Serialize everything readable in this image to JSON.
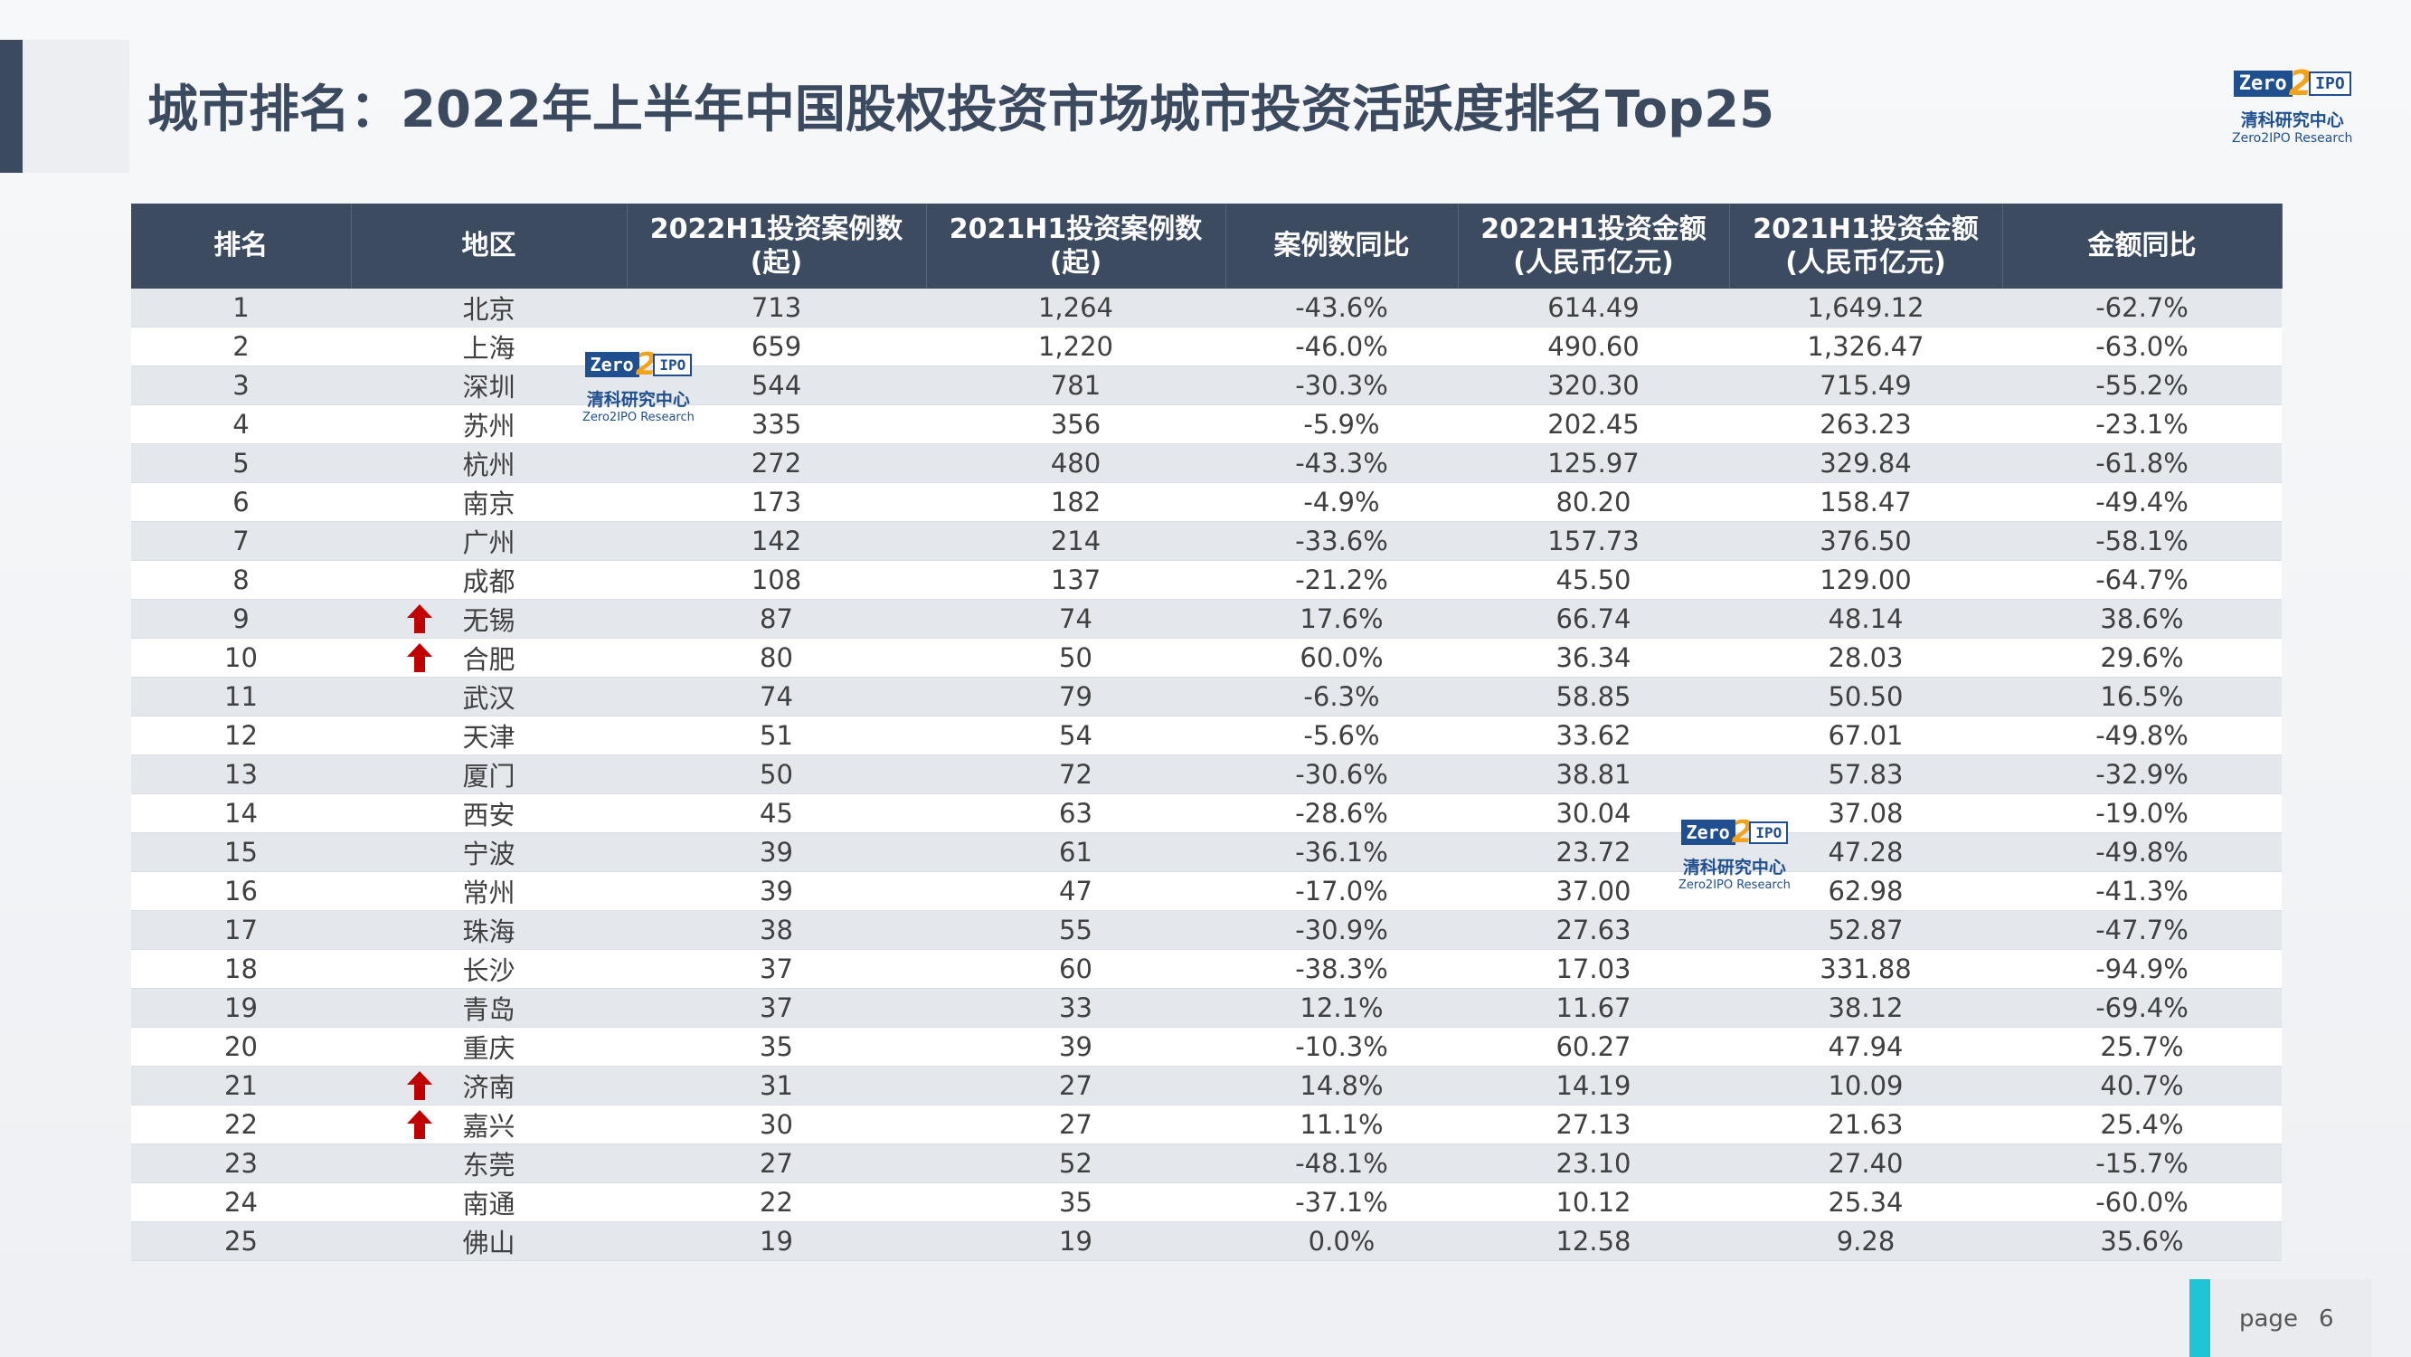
{
  "title": "城市排名：2022年上半年中国股权投资市场城市投资活跃度排名Top25",
  "logo": {
    "zero": "Zero",
    "two": "2",
    "ipo": "IPO",
    "cn": "清科研究中心",
    "en": "Zero2IPO Research"
  },
  "table": {
    "headers": [
      {
        "line1": "排名",
        "line2": ""
      },
      {
        "line1": "地区",
        "line2": ""
      },
      {
        "line1": "2022H1投资案例数",
        "line2": "(起)"
      },
      {
        "line1": "2021H1投资案例数",
        "line2": "(起)"
      },
      {
        "line1": "案例数同比",
        "line2": ""
      },
      {
        "line1": "2022H1投资金额",
        "line2": "(人民币亿元)"
      },
      {
        "line1": "2021H1投资金额",
        "line2": "(人民币亿元)"
      },
      {
        "line1": "金额同比",
        "line2": ""
      }
    ],
    "rows": [
      [
        "1",
        "北京",
        "713",
        "1,264",
        "-43.6%",
        "614.49",
        "1,649.12",
        "-62.7%"
      ],
      [
        "2",
        "上海",
        "659",
        "1,220",
        "-46.0%",
        "490.60",
        "1,326.47",
        "-63.0%"
      ],
      [
        "3",
        "深圳",
        "544",
        "781",
        "-30.3%",
        "320.30",
        "715.49",
        "-55.2%"
      ],
      [
        "4",
        "苏州",
        "335",
        "356",
        "-5.9%",
        "202.45",
        "263.23",
        "-23.1%"
      ],
      [
        "5",
        "杭州",
        "272",
        "480",
        "-43.3%",
        "125.97",
        "329.84",
        "-61.8%"
      ],
      [
        "6",
        "南京",
        "173",
        "182",
        "-4.9%",
        "80.20",
        "158.47",
        "-49.4%"
      ],
      [
        "7",
        "广州",
        "142",
        "214",
        "-33.6%",
        "157.73",
        "376.50",
        "-58.1%"
      ],
      [
        "8",
        "成都",
        "108",
        "137",
        "-21.2%",
        "45.50",
        "129.00",
        "-64.7%"
      ],
      [
        "9",
        "无锡",
        "87",
        "74",
        "17.6%",
        "66.74",
        "48.14",
        "38.6%"
      ],
      [
        "10",
        "合肥",
        "80",
        "50",
        "60.0%",
        "36.34",
        "28.03",
        "29.6%"
      ],
      [
        "11",
        "武汉",
        "74",
        "79",
        "-6.3%",
        "58.85",
        "50.50",
        "16.5%"
      ],
      [
        "12",
        "天津",
        "51",
        "54",
        "-5.6%",
        "33.62",
        "67.01",
        "-49.8%"
      ],
      [
        "13",
        "厦门",
        "50",
        "72",
        "-30.6%",
        "38.81",
        "57.83",
        "-32.9%"
      ],
      [
        "14",
        "西安",
        "45",
        "63",
        "-28.6%",
        "30.04",
        "37.08",
        "-19.0%"
      ],
      [
        "15",
        "宁波",
        "39",
        "61",
        "-36.1%",
        "23.72",
        "47.28",
        "-49.8%"
      ],
      [
        "16",
        "常州",
        "39",
        "47",
        "-17.0%",
        "37.00",
        "62.98",
        "-41.3%"
      ],
      [
        "17",
        "珠海",
        "38",
        "55",
        "-30.9%",
        "27.63",
        "52.87",
        "-47.7%"
      ],
      [
        "18",
        "长沙",
        "37",
        "60",
        "-38.3%",
        "17.03",
        "331.88",
        "-94.9%"
      ],
      [
        "19",
        "青岛",
        "37",
        "33",
        "12.1%",
        "11.67",
        "38.12",
        "-69.4%"
      ],
      [
        "20",
        "重庆",
        "35",
        "39",
        "-10.3%",
        "60.27",
        "47.94",
        "25.7%"
      ],
      [
        "21",
        "济南",
        "31",
        "27",
        "14.8%",
        "14.19",
        "10.09",
        "40.7%"
      ],
      [
        "22",
        "嘉兴",
        "30",
        "27",
        "11.1%",
        "27.13",
        "21.63",
        "25.4%"
      ],
      [
        "23",
        "东莞",
        "27",
        "52",
        "-48.1%",
        "23.10",
        "27.40",
        "-15.7%"
      ],
      [
        "24",
        "南通",
        "22",
        "35",
        "-37.1%",
        "10.12",
        "25.34",
        "-60.0%"
      ],
      [
        "25",
        "佛山",
        "19",
        "19",
        "0.0%",
        "12.58",
        "9.28",
        "35.6%"
      ]
    ],
    "rising_rows": [
      8,
      9,
      20,
      21
    ]
  },
  "colors": {
    "header_bg": "#3d4b61",
    "accent": "#1ec5d6",
    "arrow": "#c00000",
    "title": "#3c4a60"
  },
  "footer": {
    "page_label": "page",
    "page_number": "6"
  }
}
